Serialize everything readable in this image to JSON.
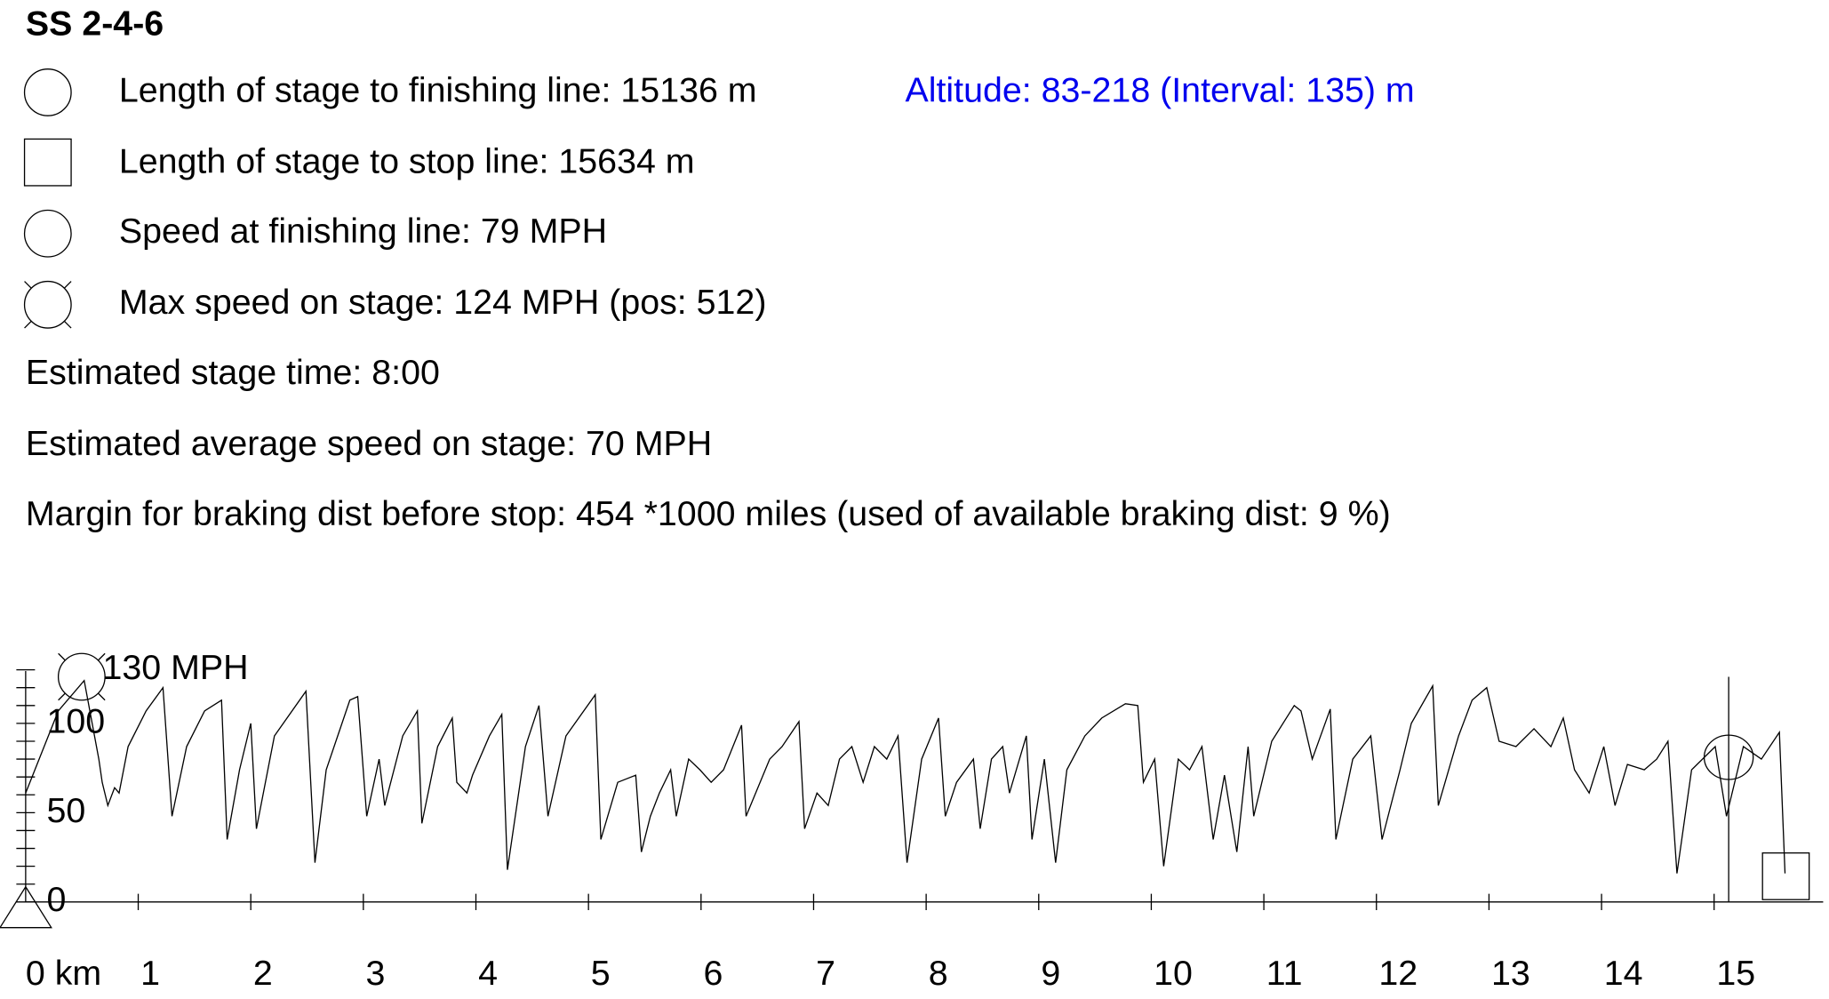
{
  "chart_data": {
    "type": "line",
    "title": "SS 2-4-6",
    "legend_items": [
      "Length of stage to finishing line: 15136 m",
      "Length of stage to stop line: 15634 m",
      "Speed at finishing line: 79 MPH",
      "Max speed on stage: 124 MPH (pos: 512)"
    ],
    "altitude": "Altitude: 83-218 (Interval: 135) m",
    "altitude_color": "#0000ee",
    "notes": [
      "Estimated stage time: 8:00",
      "Estimated average speed on stage: 70 MPH",
      "Margin for braking dist before stop: 454 *1000 miles (used of available braking dist: 9 %)"
    ],
    "xlim": [
      0,
      16
    ],
    "xticks": [
      {
        "value": 0,
        "label": "0 km"
      },
      1,
      2,
      3,
      4,
      5,
      6,
      7,
      8,
      9,
      10,
      11,
      12,
      13,
      14,
      15
    ],
    "ylim": [
      0,
      130
    ],
    "yticks": [
      0,
      50,
      100,
      {
        "value": 130,
        "label": "130 MPH"
      }
    ],
    "yminorticks": [
      10,
      20,
      30,
      40,
      60,
      70,
      80,
      90,
      110,
      120
    ],
    "series": [
      {
        "color": "#000000",
        "x": [
          0,
          0.29,
          0.52,
          0.65,
          0.68,
          0.73,
          0.79,
          0.83,
          0.91,
          1.07,
          1.22,
          1.3,
          1.43,
          1.59,
          1.74,
          1.79,
          1.9,
          2.0,
          2.05,
          2.21,
          2.49,
          2.57,
          2.67,
          2.88,
          2.95,
          3.03,
          3.14,
          3.19,
          3.35,
          3.48,
          3.52,
          3.66,
          3.79,
          3.83,
          3.92,
          3.97,
          4.12,
          4.23,
          4.28,
          4.44,
          4.56,
          4.64,
          4.8,
          5.06,
          5.11,
          5.26,
          5.42,
          5.47,
          5.55,
          5.63,
          5.73,
          5.78,
          5.89,
          5.99,
          6.09,
          6.2,
          6.36,
          6.4,
          6.61,
          6.72,
          6.87,
          6.92,
          7.03,
          7.13,
          7.23,
          7.34,
          7.44,
          7.54,
          7.65,
          7.75,
          7.83,
          7.96,
          8.11,
          8.17,
          8.27,
          8.42,
          8.48,
          8.58,
          8.68,
          8.74,
          8.89,
          8.94,
          9.05,
          9.15,
          9.25,
          9.41,
          9.56,
          9.77,
          9.88,
          9.93,
          10.03,
          10.11,
          10.24,
          10.34,
          10.45,
          10.55,
          10.65,
          10.76,
          10.86,
          10.91,
          11.07,
          11.27,
          11.33,
          11.43,
          11.59,
          11.64,
          11.79,
          11.95,
          12.05,
          12.21,
          12.31,
          12.5,
          12.55,
          12.73,
          12.85,
          12.98,
          13.09,
          13.24,
          13.4,
          13.55,
          13.66,
          13.76,
          13.89,
          14.02,
          14.12,
          14.23,
          14.38,
          14.49,
          14.59,
          14.67,
          14.8,
          15.01,
          15.11,
          15.26,
          15.42,
          15.58,
          15.63
        ],
        "values": [
          61,
          107,
          124,
          80,
          67,
          54,
          64,
          61,
          87,
          107,
          120,
          48,
          87,
          107,
          113,
          35,
          74,
          100,
          41,
          93,
          118,
          22,
          74,
          113,
          115,
          48,
          80,
          54,
          93,
          107,
          44,
          87,
          103,
          67,
          61,
          71,
          93,
          105,
          18,
          87,
          110,
          48,
          93,
          116,
          35,
          67,
          71,
          28,
          48,
          61,
          74,
          48,
          80,
          74,
          67,
          74,
          99,
          48,
          80,
          87,
          101,
          41,
          61,
          54,
          80,
          87,
          67,
          87,
          80,
          93,
          22,
          80,
          103,
          48,
          67,
          80,
          41,
          80,
          87,
          61,
          93,
          35,
          80,
          22,
          74,
          93,
          103,
          111,
          110,
          67,
          80,
          20,
          80,
          74,
          87,
          35,
          71,
          28,
          87,
          48,
          90,
          110,
          107,
          80,
          108,
          35,
          80,
          93,
          35,
          74,
          100,
          121,
          54,
          93,
          113,
          120,
          90,
          87,
          97,
          87,
          103,
          74,
          61,
          87,
          54,
          77,
          74,
          80,
          90,
          16,
          74,
          87,
          48,
          87,
          80,
          95,
          16
        ]
      }
    ]
  }
}
